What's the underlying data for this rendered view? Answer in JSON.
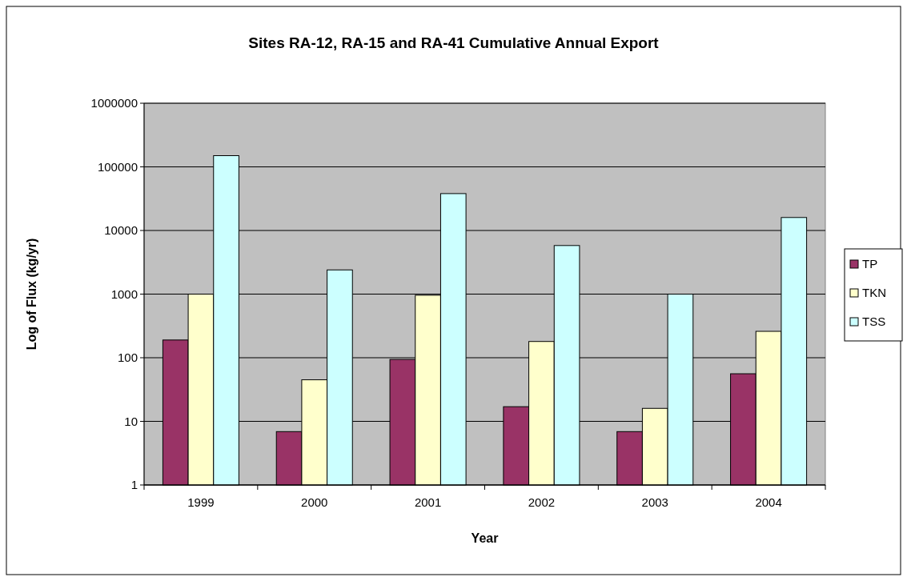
{
  "chart_data": {
    "type": "bar",
    "title": "Sites RA-12, RA-15 and RA-41 Cumulative Annual Export",
    "xlabel": "Year",
    "ylabel": "Log of Flux (kg/yr)",
    "categories": [
      "1999",
      "2000",
      "2001",
      "2002",
      "2003",
      "2004"
    ],
    "series": [
      {
        "name": "TP",
        "color": "#993366",
        "values": [
          190,
          6.9,
          94,
          17,
          6.9,
          56
        ]
      },
      {
        "name": "TKN",
        "color": "#ffffcc",
        "values": [
          1000,
          45,
          960,
          180,
          16,
          260
        ]
      },
      {
        "name": "TSS",
        "color": "#ccffff",
        "values": [
          150000,
          2400,
          38000,
          5800,
          1000,
          16000
        ]
      }
    ],
    "log": true,
    "ylim": [
      1,
      1000000
    ],
    "yticks": [
      1,
      10,
      100,
      1000,
      10000,
      100000,
      1000000
    ],
    "grid": "y",
    "legend": "right"
  }
}
